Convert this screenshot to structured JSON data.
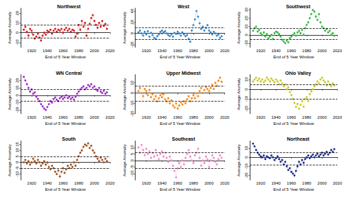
{
  "chart_data": [
    {
      "type": "line",
      "title": "Northwest",
      "xlabel": "End of 5 Year Window",
      "ylabel": "Average Anomaly",
      "color": "#d7191c",
      "marker": "circle",
      "line_style": "dotted",
      "grid": false,
      "x": [
        1910,
        1912,
        1914,
        1916,
        1918,
        1920,
        1922,
        1924,
        1926,
        1928,
        1930,
        1932,
        1934,
        1936,
        1938,
        1940,
        1942,
        1944,
        1946,
        1948,
        1950,
        1952,
        1954,
        1956,
        1958,
        1960,
        1962,
        1964,
        1966,
        1968,
        1970,
        1972,
        1974,
        1976,
        1978,
        1980,
        1982,
        1984,
        1986,
        1988,
        1990,
        1992,
        1994,
        1996,
        1998,
        2000,
        2002,
        2004,
        2006,
        2008,
        2010,
        2012,
        2014,
        2016
      ],
      "values": [
        3,
        6,
        1,
        -3,
        4,
        2,
        -2,
        -6,
        -4,
        -1,
        -5,
        -8,
        -3,
        0,
        -2,
        2,
        1,
        3,
        -1,
        2,
        4,
        1,
        3,
        2,
        4,
        0,
        3,
        5,
        2,
        4,
        1,
        3,
        2,
        -4,
        -1,
        8,
        3,
        12,
        6,
        10,
        -3,
        4,
        9,
        15,
        18,
        12,
        8,
        5,
        10,
        6,
        12,
        7,
        9,
        4
      ],
      "thresholds": [
        -5,
        8
      ],
      "xlim": [
        1906,
        2020
      ],
      "xticks": [
        1920,
        1940,
        1960,
        1980,
        2000,
        2020
      ],
      "ylim": [
        -15,
        25
      ],
      "yticks": [
        -10,
        0,
        10,
        20
      ]
    },
    {
      "type": "line",
      "title": "West",
      "xlabel": "End of 5 Year Window",
      "ylabel": "Average Anomaly",
      "color": "#3a87c8",
      "marker": "circle",
      "line_style": "dotted",
      "grid": false,
      "x": [
        1910,
        1912,
        1914,
        1916,
        1918,
        1920,
        1922,
        1924,
        1926,
        1928,
        1930,
        1932,
        1934,
        1936,
        1938,
        1940,
        1942,
        1944,
        1946,
        1948,
        1950,
        1952,
        1954,
        1956,
        1958,
        1960,
        1962,
        1964,
        1966,
        1968,
        1970,
        1972,
        1974,
        1976,
        1978,
        1980,
        1982,
        1984,
        1986,
        1988,
        1990,
        1992,
        1994,
        1996,
        1998,
        2000,
        2002,
        2004,
        2006,
        2008,
        2010,
        2012,
        2014,
        2016
      ],
      "values": [
        2,
        5,
        0,
        -4,
        3,
        -2,
        4,
        -6,
        1,
        -3,
        -8,
        -10,
        -5,
        -2,
        3,
        5,
        2,
        4,
        0,
        -3,
        -5,
        -2,
        -6,
        1,
        -1,
        3,
        0,
        -4,
        2,
        -2,
        -5,
        -3,
        -10,
        -15,
        5,
        15,
        25,
        40,
        30,
        18,
        8,
        12,
        5,
        10,
        15,
        5,
        2,
        -2,
        3,
        0,
        -4,
        -2,
        -8,
        -5
      ],
      "thresholds": [
        -10,
        10
      ],
      "xlim": [
        1906,
        2020
      ],
      "xticks": [
        1920,
        1940,
        1960,
        1980,
        2000,
        2020
      ],
      "ylim": [
        -25,
        45
      ],
      "yticks": [
        -20,
        0,
        20,
        40
      ]
    },
    {
      "type": "line",
      "title": "Southwest",
      "xlabel": "End of 5 Year Window",
      "ylabel": "Average Anomaly",
      "color": "#3cb54a",
      "marker": "circle",
      "line_style": "dotted",
      "grid": false,
      "x": [
        1910,
        1912,
        1914,
        1916,
        1918,
        1920,
        1922,
        1924,
        1926,
        1928,
        1930,
        1932,
        1934,
        1936,
        1938,
        1940,
        1942,
        1944,
        1946,
        1948,
        1950,
        1952,
        1954,
        1956,
        1958,
        1960,
        1962,
        1964,
        1966,
        1968,
        1970,
        1972,
        1974,
        1976,
        1978,
        1980,
        1982,
        1984,
        1986,
        1988,
        1990,
        1992,
        1994,
        1996,
        1998,
        2000,
        2002,
        2004,
        2006,
        2008,
        2010,
        2012,
        2014,
        2016
      ],
      "values": [
        5,
        8,
        10,
        4,
        6,
        2,
        0,
        3,
        -2,
        1,
        -4,
        -2,
        0,
        -5,
        2,
        4,
        3,
        1,
        -2,
        -6,
        -8,
        -10,
        -7,
        -9,
        -4,
        -2,
        0,
        2,
        -1,
        3,
        5,
        2,
        6,
        0,
        8,
        12,
        15,
        20,
        25,
        30,
        28,
        22,
        18,
        25,
        15,
        10,
        8,
        5,
        7,
        3,
        5,
        0,
        2,
        -1
      ],
      "thresholds": [
        -5,
        8
      ],
      "xlim": [
        1906,
        2020
      ],
      "xticks": [
        1920,
        1940,
        1960,
        1980,
        2000,
        2020
      ],
      "ylim": [
        -15,
        32
      ],
      "yticks": [
        -10,
        0,
        10,
        20,
        30
      ]
    },
    {
      "type": "line",
      "title": "WN Central",
      "xlabel": "End of 5 Year Window",
      "ylabel": "Average Anomaly",
      "color": "#9b30c0",
      "marker": "circle",
      "line_style": "dotted",
      "grid": false,
      "x": [
        1910,
        1912,
        1914,
        1916,
        1918,
        1920,
        1922,
        1924,
        1926,
        1928,
        1930,
        1932,
        1934,
        1936,
        1938,
        1940,
        1942,
        1944,
        1946,
        1948,
        1950,
        1952,
        1954,
        1956,
        1958,
        1960,
        1962,
        1964,
        1966,
        1968,
        1970,
        1972,
        1974,
        1976,
        1978,
        1980,
        1982,
        1984,
        1986,
        1988,
        1990,
        1992,
        1994,
        1996,
        1998,
        2000,
        2002,
        2004,
        2006,
        2008,
        2010,
        2012,
        2014,
        2016
      ],
      "values": [
        25,
        20,
        15,
        10,
        5,
        8,
        2,
        4,
        -2,
        -5,
        -8,
        -12,
        -15,
        -18,
        -20,
        -16,
        -12,
        -8,
        -10,
        -5,
        -3,
        -6,
        -8,
        -4,
        -2,
        -5,
        -3,
        0,
        -4,
        -2,
        -5,
        -3,
        -6,
        -2,
        2,
        5,
        8,
        10,
        12,
        8,
        10,
        14,
        12,
        15,
        10,
        12,
        8,
        6,
        10,
        5,
        3,
        6,
        2,
        4
      ],
      "thresholds": [
        -8,
        8
      ],
      "xlim": [
        1906,
        2020
      ],
      "xticks": [
        1920,
        1940,
        1960,
        1980,
        2000,
        2020
      ],
      "ylim": [
        -25,
        28
      ],
      "yticks": [
        -20,
        -10,
        0,
        10,
        20
      ]
    },
    {
      "type": "line",
      "title": "Upper Midwest",
      "xlabel": "End of 5 Year Window",
      "ylabel": "Average Anomaly",
      "color": "#f08c1e",
      "marker": "circle",
      "line_style": "dotted",
      "grid": false,
      "x": [
        1910,
        1912,
        1914,
        1916,
        1918,
        1920,
        1922,
        1924,
        1926,
        1928,
        1930,
        1932,
        1934,
        1936,
        1938,
        1940,
        1942,
        1944,
        1946,
        1948,
        1950,
        1952,
        1954,
        1956,
        1958,
        1960,
        1962,
        1964,
        1966,
        1968,
        1970,
        1972,
        1974,
        1976,
        1978,
        1980,
        1982,
        1984,
        1986,
        1988,
        1990,
        1992,
        1994,
        1996,
        1998,
        2000,
        2002,
        2004,
        2006,
        2008,
        2010,
        2012,
        2014,
        2016
      ],
      "values": [
        2,
        5,
        0,
        -3,
        4,
        2,
        -2,
        3,
        -4,
        -1,
        -6,
        -3,
        -8,
        -5,
        -2,
        -4,
        -1,
        -6,
        -8,
        -5,
        -10,
        -7,
        -12,
        -14,
        -10,
        -15,
        -12,
        -9,
        -11,
        -8,
        -10,
        -6,
        -3,
        -8,
        -5,
        -2,
        -5,
        0,
        -3,
        2,
        5,
        0,
        3,
        6,
        4,
        2,
        5,
        8,
        4,
        10,
        7,
        12,
        15,
        11
      ],
      "thresholds": [
        -8,
        7
      ],
      "xlim": [
        1906,
        2020
      ],
      "xticks": [
        1920,
        1940,
        1960,
        1980,
        2000,
        2020
      ],
      "ylim": [
        -20,
        18
      ],
      "yticks": [
        -20,
        -10,
        0,
        10
      ]
    },
    {
      "type": "line",
      "title": "Ohio Valley",
      "xlabel": "End of 5 Year Window",
      "ylabel": "Average Anomaly",
      "color": "#c8c828",
      "marker": "circle",
      "line_style": "dotted",
      "grid": false,
      "x": [
        1910,
        1912,
        1914,
        1916,
        1918,
        1920,
        1922,
        1924,
        1926,
        1928,
        1930,
        1932,
        1934,
        1936,
        1938,
        1940,
        1942,
        1944,
        1946,
        1948,
        1950,
        1952,
        1954,
        1956,
        1958,
        1960,
        1962,
        1964,
        1966,
        1968,
        1970,
        1972,
        1974,
        1976,
        1978,
        1980,
        1982,
        1984,
        1986,
        1988,
        1990,
        1992,
        1994,
        1996,
        1998,
        2000,
        2002,
        2004,
        2006,
        2008,
        2010,
        2012,
        2014,
        2016
      ],
      "values": [
        8,
        10,
        12,
        9,
        11,
        8,
        10,
        7,
        9,
        12,
        10,
        8,
        11,
        9,
        7,
        10,
        8,
        5,
        9,
        6,
        3,
        5,
        0,
        2,
        -3,
        -6,
        -10,
        -14,
        -18,
        -15,
        -20,
        -16,
        -12,
        -18,
        -10,
        -8,
        -12,
        -5,
        -2,
        0,
        3,
        5,
        8,
        6,
        10,
        12,
        9,
        7,
        4,
        8,
        5,
        3,
        6,
        4
      ],
      "thresholds": [
        -10,
        5
      ],
      "xlim": [
        1906,
        2020
      ],
      "xticks": [
        1920,
        1940,
        1960,
        1980,
        2000,
        2020
      ],
      "ylim": [
        -25,
        15
      ],
      "yticks": [
        -20,
        -10,
        0,
        10
      ]
    },
    {
      "type": "line",
      "title": "South",
      "xlabel": "End of 5 Year Window",
      "ylabel": "Average Anomaly",
      "color": "#a0501e",
      "marker": "circle",
      "line_style": "dotted",
      "grid": false,
      "x": [
        1910,
        1912,
        1914,
        1916,
        1918,
        1920,
        1922,
        1924,
        1926,
        1928,
        1930,
        1932,
        1934,
        1936,
        1938,
        1940,
        1942,
        1944,
        1946,
        1948,
        1950,
        1952,
        1954,
        1956,
        1958,
        1960,
        1962,
        1964,
        1966,
        1968,
        1970,
        1972,
        1974,
        1976,
        1978,
        1980,
        1982,
        1984,
        1986,
        1988,
        1990,
        1992,
        1994,
        1996,
        1998,
        2000,
        2002,
        2004,
        2006,
        2008,
        2010,
        2012,
        2014,
        2016
      ],
      "values": [
        0,
        2,
        -1,
        1,
        -2,
        0,
        3,
        1,
        -1,
        2,
        0,
        -3,
        -1,
        1,
        -2,
        0,
        -4,
        -6,
        -3,
        -5,
        -8,
        -10,
        -7,
        -12,
        -8,
        -5,
        -9,
        -6,
        -3,
        -5,
        -2,
        -4,
        0,
        -3,
        2,
        5,
        8,
        10,
        13,
        15,
        14,
        16,
        12,
        14,
        10,
        8,
        5,
        3,
        1,
        4,
        2,
        0,
        3,
        1
      ],
      "thresholds": [
        -5,
        5
      ],
      "xlim": [
        1906,
        2020
      ],
      "xticks": [
        1920,
        1940,
        1960,
        1980,
        2000,
        2020
      ],
      "ylim": [
        -15,
        18
      ],
      "yticks": [
        -10,
        -5,
        0,
        5,
        10,
        15
      ]
    },
    {
      "type": "line",
      "title": "Southeast",
      "xlabel": "End of 5 Year Window",
      "ylabel": "Average Anomaly",
      "color": "#f08cc8",
      "marker": "circle",
      "line_style": "dotted",
      "grid": false,
      "x": [
        1910,
        1912,
        1914,
        1916,
        1918,
        1920,
        1922,
        1924,
        1926,
        1928,
        1930,
        1932,
        1934,
        1936,
        1938,
        1940,
        1942,
        1944,
        1946,
        1948,
        1950,
        1952,
        1954,
        1956,
        1958,
        1960,
        1962,
        1964,
        1966,
        1968,
        1970,
        1972,
        1974,
        1976,
        1978,
        1980,
        1982,
        1984,
        1986,
        1988,
        1990,
        1992,
        1994,
        1996,
        1998,
        2000,
        2002,
        2004,
        2006,
        2008,
        2010,
        2012,
        2014,
        2016
      ],
      "values": [
        10,
        6,
        12,
        8,
        4,
        9,
        5,
        7,
        2,
        6,
        3,
        8,
        4,
        1,
        5,
        7,
        3,
        6,
        2,
        -1,
        3,
        0,
        -4,
        -8,
        -13,
        -6,
        -2,
        -5,
        0,
        -3,
        2,
        5,
        8,
        3,
        0,
        -2,
        4,
        6,
        9,
        2,
        -4,
        0,
        -2,
        3,
        1,
        -5,
        0,
        4,
        2,
        -1,
        -3,
        1,
        4,
        2
      ],
      "thresholds": [
        -6,
        6
      ],
      "xlim": [
        1906,
        2020
      ],
      "xticks": [
        1920,
        1940,
        1960,
        1980,
        2000,
        2020
      ],
      "ylim": [
        -15,
        15
      ],
      "yticks": [
        -10,
        -5,
        0,
        5,
        10
      ]
    },
    {
      "type": "line",
      "title": "Northeast",
      "xlabel": "End of 5 Year Window",
      "ylabel": "Average Anomaly",
      "color": "#1e2d8c",
      "marker": "circle",
      "line_style": "dotted",
      "grid": false,
      "x": [
        1910,
        1912,
        1914,
        1916,
        1918,
        1920,
        1922,
        1924,
        1926,
        1928,
        1930,
        1932,
        1934,
        1936,
        1938,
        1940,
        1942,
        1944,
        1946,
        1948,
        1950,
        1952,
        1954,
        1956,
        1958,
        1960,
        1962,
        1964,
        1966,
        1968,
        1970,
        1972,
        1974,
        1976,
        1978,
        1980,
        1982,
        1984,
        1986,
        1988,
        1990,
        1992,
        1994,
        1996,
        1998,
        2000,
        2002,
        2004,
        2006,
        2008,
        2010,
        2012,
        2014,
        2016
      ],
      "values": [
        15,
        12,
        8,
        5,
        3,
        1,
        0,
        2,
        -2,
        1,
        0,
        -1,
        2,
        0,
        -3,
        -1,
        1,
        -2,
        -5,
        -3,
        -8,
        -5,
        -10,
        -14,
        -12,
        -16,
        -18,
        -20,
        -15,
        -10,
        -5,
        -8,
        -3,
        -6,
        -2,
        0,
        2,
        -1,
        1,
        3,
        0,
        2,
        4,
        1,
        3,
        5,
        2,
        4,
        6,
        3,
        5,
        8,
        6,
        9
      ],
      "thresholds": [
        -8,
        5
      ],
      "xlim": [
        1906,
        2020
      ],
      "xticks": [
        1920,
        1940,
        1960,
        1980,
        2000,
        2020
      ],
      "ylim": [
        -25,
        18
      ],
      "yticks": [
        -20,
        -10,
        0,
        10
      ]
    }
  ]
}
